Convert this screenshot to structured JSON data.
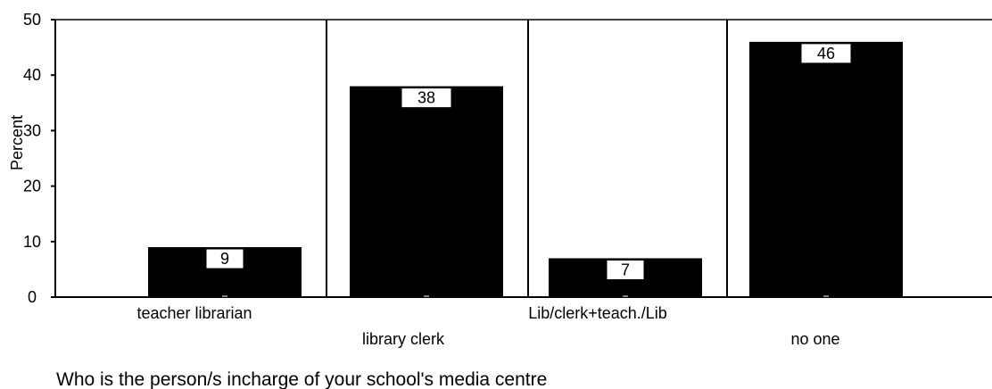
{
  "chart_data": {
    "type": "bar",
    "categories": [
      "teacher librarian",
      "library clerk",
      "Lib/clerk+teach./Lib",
      "no one"
    ],
    "values": [
      9,
      38,
      7,
      46
    ],
    "data_labels": [
      "9",
      "38",
      "7",
      "46"
    ],
    "ylabel": "Percent",
    "xlabel": "Who is the person/s incharge of your school's media centre",
    "ylim": [
      0,
      50
    ],
    "yticks": [
      0,
      10,
      20,
      30,
      40,
      50
    ],
    "bar_color": "#000000",
    "grid": false,
    "category_separators": true
  }
}
